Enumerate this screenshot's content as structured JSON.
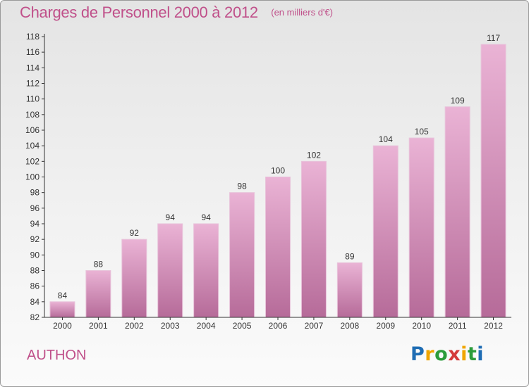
{
  "title": "Charges de Personnel 2000 à 2012",
  "subtitle": "(en milliers d'€)",
  "town": "AUTHON",
  "logo": {
    "letters": [
      "P",
      "r",
      "o",
      "x",
      "i",
      "t",
      "i"
    ]
  },
  "colors": {
    "accent": "#c0508a",
    "bar_top": "#eab3d5",
    "bar_bottom": "#b66b99",
    "logo": [
      "#1f6db4",
      "#f0a500",
      "#2c9c3b",
      "#d43a3a",
      "#f0a500",
      "#2c9c3b",
      "#1f6db4"
    ]
  },
  "chart_data": {
    "type": "bar",
    "categories": [
      "2000",
      "2001",
      "2002",
      "2003",
      "2004",
      "2005",
      "2006",
      "2007",
      "2008",
      "2009",
      "2010",
      "2011",
      "2012"
    ],
    "values": [
      84,
      88,
      92,
      94,
      94,
      98,
      100,
      102,
      89,
      104,
      105,
      109,
      117
    ],
    "data_labels": [
      "84",
      "88",
      "92",
      "94",
      "94",
      "98",
      "100",
      "102",
      "89",
      "104",
      "105",
      "109",
      "117"
    ],
    "ylim": [
      82,
      118
    ],
    "yticks": [
      82,
      84,
      86,
      88,
      90,
      92,
      94,
      96,
      98,
      100,
      102,
      104,
      106,
      108,
      110,
      112,
      114,
      116,
      118
    ],
    "title": "Charges de Personnel 2000 à 2012",
    "xlabel": "",
    "ylabel": "",
    "grid": false,
    "legend": false
  }
}
